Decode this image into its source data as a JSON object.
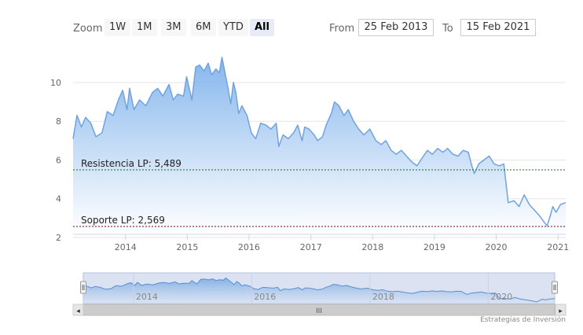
{
  "toolbar": {
    "zoom_label": "Zoom",
    "zoom_buttons": [
      "1W",
      "1M",
      "3M",
      "6M",
      "YTD",
      "All"
    ],
    "active_zoom": "All",
    "from_label": "From",
    "from_value": "25 Feb 2013",
    "to_label": "To",
    "to_value": "15 Feb 2021"
  },
  "credits": "Estrategias de Inversión",
  "navigator": {
    "year_labels": [
      "2014",
      "2016",
      "2018",
      "2020"
    ],
    "scroll_grip": "III",
    "left_arrow": "◂",
    "right_arrow": "▸"
  },
  "colors": {
    "line": "#6fa3e0",
    "area_top": "#7fb2ec",
    "area_bottom": "#ffffff",
    "resistance": "#1a6b1a",
    "support": "#8b0000",
    "navigator_bg": "#dbe3f3"
  },
  "chart_data": {
    "type": "area",
    "x_type": "date",
    "yticks": [
      2,
      4,
      6,
      8,
      10
    ],
    "ylim": [
      2,
      11.5
    ],
    "xlim": [
      "2013-02-25",
      "2021-02-15"
    ],
    "xticks": [
      "2014",
      "2015",
      "2016",
      "2017",
      "2018",
      "2019",
      "2020",
      "2021"
    ],
    "grid": true,
    "series": [
      {
        "points": [
          [
            "2013-02-25",
            7.1
          ],
          [
            "2013-03-20",
            8.3
          ],
          [
            "2013-04-15",
            7.7
          ],
          [
            "2013-05-10",
            8.2
          ],
          [
            "2013-06-10",
            7.9
          ],
          [
            "2013-07-10",
            7.2
          ],
          [
            "2013-08-15",
            7.4
          ],
          [
            "2013-09-15",
            8.5
          ],
          [
            "2013-10-20",
            8.3
          ],
          [
            "2013-11-20",
            9.1
          ],
          [
            "2013-12-15",
            9.6
          ],
          [
            "2014-01-10",
            8.6
          ],
          [
            "2014-01-25",
            9.7
          ],
          [
            "2014-02-20",
            8.6
          ],
          [
            "2014-03-25",
            9.1
          ],
          [
            "2014-05-01",
            8.8
          ],
          [
            "2014-06-10",
            9.5
          ],
          [
            "2014-07-10",
            9.7
          ],
          [
            "2014-08-10",
            9.3
          ],
          [
            "2014-09-15",
            9.9
          ],
          [
            "2014-10-10",
            9.1
          ],
          [
            "2014-11-05",
            9.4
          ],
          [
            "2014-12-10",
            9.3
          ],
          [
            "2014-12-28",
            10.3
          ],
          [
            "2015-01-10",
            9.8
          ],
          [
            "2015-01-28",
            9.1
          ],
          [
            "2015-02-20",
            10.8
          ],
          [
            "2015-03-15",
            10.9
          ],
          [
            "2015-04-10",
            10.6
          ],
          [
            "2015-05-05",
            11.0
          ],
          [
            "2015-05-25",
            10.4
          ],
          [
            "2015-06-20",
            10.7
          ],
          [
            "2015-07-10",
            10.5
          ],
          [
            "2015-07-25",
            11.3
          ],
          [
            "2015-08-10",
            10.6
          ],
          [
            "2015-08-30",
            9.7
          ],
          [
            "2015-09-15",
            8.9
          ],
          [
            "2015-10-01",
            10.0
          ],
          [
            "2015-10-15",
            9.5
          ],
          [
            "2015-11-01",
            8.4
          ],
          [
            "2015-11-20",
            8.8
          ],
          [
            "2015-12-20",
            8.3
          ],
          [
            "2016-01-15",
            7.4
          ],
          [
            "2016-02-10",
            7.1
          ],
          [
            "2016-03-10",
            7.9
          ],
          [
            "2016-04-10",
            7.8
          ],
          [
            "2016-05-10",
            7.6
          ],
          [
            "2016-06-10",
            7.9
          ],
          [
            "2016-06-25",
            6.7
          ],
          [
            "2016-07-20",
            7.3
          ],
          [
            "2016-08-20",
            7.1
          ],
          [
            "2016-09-20",
            7.4
          ],
          [
            "2016-10-15",
            7.8
          ],
          [
            "2016-11-10",
            7.0
          ],
          [
            "2016-11-25",
            7.7
          ],
          [
            "2016-12-20",
            7.6
          ],
          [
            "2017-01-20",
            7.3
          ],
          [
            "2017-02-10",
            7.0
          ],
          [
            "2017-03-10",
            7.2
          ],
          [
            "2017-04-01",
            7.8
          ],
          [
            "2017-05-01",
            8.4
          ],
          [
            "2017-05-20",
            9.0
          ],
          [
            "2017-06-15",
            8.8
          ],
          [
            "2017-07-15",
            8.3
          ],
          [
            "2017-08-10",
            8.6
          ],
          [
            "2017-09-10",
            8.0
          ],
          [
            "2017-10-10",
            7.6
          ],
          [
            "2017-11-10",
            7.3
          ],
          [
            "2017-12-15",
            7.6
          ],
          [
            "2018-01-20",
            7.0
          ],
          [
            "2018-02-20",
            6.8
          ],
          [
            "2018-03-20",
            7.0
          ],
          [
            "2018-04-20",
            6.5
          ],
          [
            "2018-05-20",
            6.3
          ],
          [
            "2018-06-20",
            6.5
          ],
          [
            "2018-07-20",
            6.2
          ],
          [
            "2018-08-20",
            5.9
          ],
          [
            "2018-09-20",
            5.7
          ],
          [
            "2018-10-20",
            6.1
          ],
          [
            "2018-11-20",
            6.5
          ],
          [
            "2018-12-20",
            6.3
          ],
          [
            "2019-01-20",
            6.6
          ],
          [
            "2019-02-20",
            6.4
          ],
          [
            "2019-03-20",
            6.6
          ],
          [
            "2019-04-20",
            6.3
          ],
          [
            "2019-05-20",
            6.2
          ],
          [
            "2019-06-20",
            6.5
          ],
          [
            "2019-07-20",
            6.4
          ],
          [
            "2019-08-10",
            5.7
          ],
          [
            "2019-08-25",
            5.3
          ],
          [
            "2019-09-20",
            5.8
          ],
          [
            "2019-10-20",
            6.0
          ],
          [
            "2019-11-20",
            6.2
          ],
          [
            "2019-12-20",
            5.8
          ],
          [
            "2020-01-20",
            5.7
          ],
          [
            "2020-02-15",
            5.8
          ],
          [
            "2020-02-28",
            4.8
          ],
          [
            "2020-03-12",
            3.8
          ],
          [
            "2020-04-15",
            3.9
          ],
          [
            "2020-05-15",
            3.6
          ],
          [
            "2020-06-15",
            4.2
          ],
          [
            "2020-07-15",
            3.7
          ],
          [
            "2020-08-15",
            3.4
          ],
          [
            "2020-09-15",
            3.1
          ],
          [
            "2020-10-10",
            2.8
          ],
          [
            "2020-10-28",
            2.6
          ],
          [
            "2020-11-15",
            3.1
          ],
          [
            "2020-12-01",
            3.6
          ],
          [
            "2020-12-20",
            3.3
          ],
          [
            "2021-01-15",
            3.7
          ],
          [
            "2021-02-15",
            3.8
          ]
        ]
      }
    ],
    "plot_lines": [
      {
        "label": "Resistencia LP: 5,489",
        "value": 5.489,
        "color": "#1a6b1a"
      },
      {
        "label": "Soporte LP: 2,569",
        "value": 2.569,
        "color": "#8b0000"
      }
    ]
  }
}
